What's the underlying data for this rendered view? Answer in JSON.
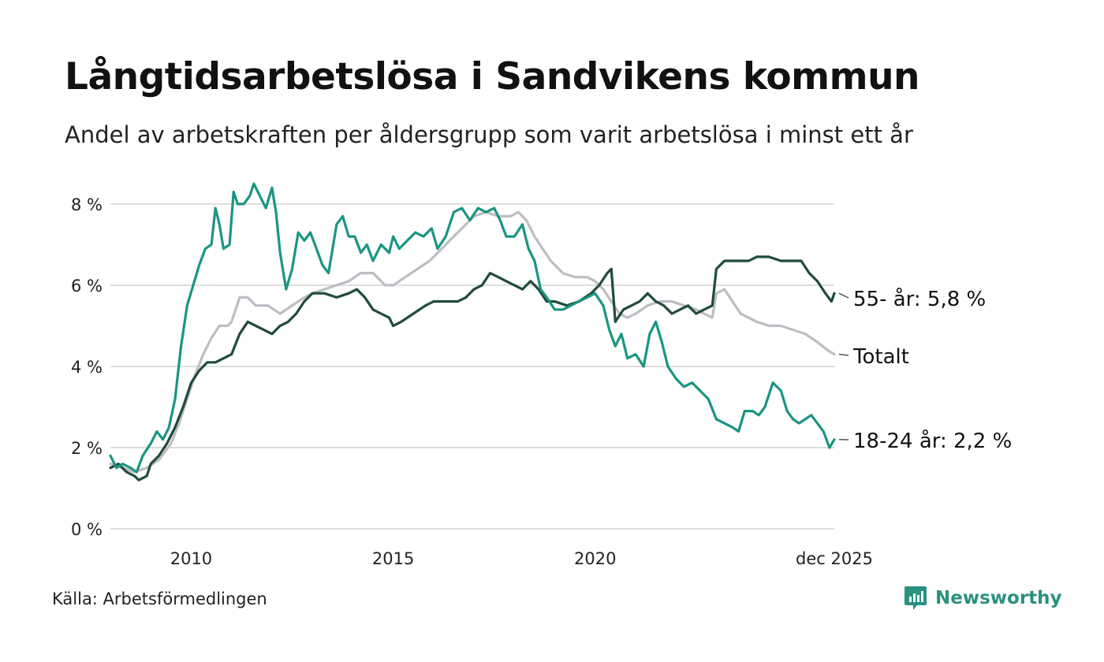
{
  "title": "Långtidsarbetslösa i Sandvikens kommun",
  "subtitle": "Andel av arbetskraften per åldersgrupp som varit arbetslösa i minst ett år",
  "source": "Källa: Arbetsförmedlingen",
  "brand": "Newsworthy",
  "colors": {
    "grid": "#dddddd",
    "youth": "#1a9582",
    "senior": "#1f4a3f",
    "total": "#bfbcc4",
    "text": "#222222",
    "brand": "#2a9080"
  },
  "chart_data": {
    "type": "line",
    "ylim": [
      0,
      8.6
    ],
    "xlim": [
      2008.0,
      2025.92
    ],
    "yticks": [
      0,
      2,
      4,
      6,
      8
    ],
    "ytick_labels": [
      "0 %",
      "2 %",
      "4 %",
      "6 %",
      "8 %"
    ],
    "xticks": [
      2010,
      2015,
      2020,
      2025.92
    ],
    "xtick_labels": [
      "2010",
      "2015",
      "2020",
      "dec 2025"
    ],
    "grid": true,
    "series": [
      {
        "name": "Totalt",
        "label": "Totalt",
        "color": "#bfbcc4",
        "points": [
          [
            2008.0,
            1.6
          ],
          [
            2008.3,
            1.5
          ],
          [
            2008.6,
            1.4
          ],
          [
            2008.9,
            1.5
          ],
          [
            2009.2,
            1.7
          ],
          [
            2009.5,
            2.1
          ],
          [
            2009.7,
            2.6
          ],
          [
            2009.9,
            3.2
          ],
          [
            2010.1,
            3.8
          ],
          [
            2010.3,
            4.3
          ],
          [
            2010.5,
            4.7
          ],
          [
            2010.7,
            5.0
          ],
          [
            2010.9,
            5.0
          ],
          [
            2011.0,
            5.1
          ],
          [
            2011.2,
            5.7
          ],
          [
            2011.4,
            5.7
          ],
          [
            2011.6,
            5.5
          ],
          [
            2011.9,
            5.5
          ],
          [
            2012.2,
            5.3
          ],
          [
            2012.5,
            5.5
          ],
          [
            2012.8,
            5.7
          ],
          [
            2013.0,
            5.8
          ],
          [
            2013.3,
            5.9
          ],
          [
            2013.6,
            6.0
          ],
          [
            2013.9,
            6.1
          ],
          [
            2014.2,
            6.3
          ],
          [
            2014.5,
            6.3
          ],
          [
            2014.8,
            6.0
          ],
          [
            2015.0,
            6.0
          ],
          [
            2015.3,
            6.2
          ],
          [
            2015.6,
            6.4
          ],
          [
            2015.9,
            6.6
          ],
          [
            2016.2,
            6.9
          ],
          [
            2016.5,
            7.2
          ],
          [
            2016.8,
            7.5
          ],
          [
            2017.0,
            7.7
          ],
          [
            2017.3,
            7.8
          ],
          [
            2017.6,
            7.7
          ],
          [
            2017.9,
            7.7
          ],
          [
            2018.1,
            7.8
          ],
          [
            2018.3,
            7.6
          ],
          [
            2018.5,
            7.2
          ],
          [
            2018.7,
            6.9
          ],
          [
            2018.9,
            6.6
          ],
          [
            2019.2,
            6.3
          ],
          [
            2019.5,
            6.2
          ],
          [
            2019.8,
            6.2
          ],
          [
            2020.0,
            6.1
          ],
          [
            2020.2,
            5.9
          ],
          [
            2020.4,
            5.6
          ],
          [
            2020.6,
            5.3
          ],
          [
            2020.8,
            5.2
          ],
          [
            2021.0,
            5.3
          ],
          [
            2021.3,
            5.5
          ],
          [
            2021.6,
            5.6
          ],
          [
            2021.9,
            5.6
          ],
          [
            2022.2,
            5.5
          ],
          [
            2022.5,
            5.4
          ],
          [
            2022.7,
            5.3
          ],
          [
            2022.9,
            5.2
          ],
          [
            2023.0,
            5.8
          ],
          [
            2023.2,
            5.9
          ],
          [
            2023.4,
            5.6
          ],
          [
            2023.6,
            5.3
          ],
          [
            2023.8,
            5.2
          ],
          [
            2024.0,
            5.1
          ],
          [
            2024.3,
            5.0
          ],
          [
            2024.6,
            5.0
          ],
          [
            2024.9,
            4.9
          ],
          [
            2025.2,
            4.8
          ],
          [
            2025.5,
            4.6
          ],
          [
            2025.75,
            4.4
          ],
          [
            2025.92,
            4.3
          ]
        ]
      },
      {
        "name": "55- år",
        "label": "55- år: 5,8 %",
        "color": "#1f4a3f",
        "points": [
          [
            2008.0,
            1.5
          ],
          [
            2008.2,
            1.6
          ],
          [
            2008.4,
            1.4
          ],
          [
            2008.6,
            1.3
          ],
          [
            2008.7,
            1.2
          ],
          [
            2008.9,
            1.3
          ],
          [
            2009.0,
            1.6
          ],
          [
            2009.2,
            1.8
          ],
          [
            2009.4,
            2.1
          ],
          [
            2009.6,
            2.5
          ],
          [
            2009.8,
            3.0
          ],
          [
            2010.0,
            3.6
          ],
          [
            2010.2,
            3.9
          ],
          [
            2010.4,
            4.1
          ],
          [
            2010.6,
            4.1
          ],
          [
            2010.8,
            4.2
          ],
          [
            2011.0,
            4.3
          ],
          [
            2011.2,
            4.8
          ],
          [
            2011.4,
            5.1
          ],
          [
            2011.6,
            5.0
          ],
          [
            2011.8,
            4.9
          ],
          [
            2012.0,
            4.8
          ],
          [
            2012.2,
            5.0
          ],
          [
            2012.4,
            5.1
          ],
          [
            2012.6,
            5.3
          ],
          [
            2012.8,
            5.6
          ],
          [
            2013.0,
            5.8
          ],
          [
            2013.3,
            5.8
          ],
          [
            2013.6,
            5.7
          ],
          [
            2013.9,
            5.8
          ],
          [
            2014.1,
            5.9
          ],
          [
            2014.3,
            5.7
          ],
          [
            2014.5,
            5.4
          ],
          [
            2014.7,
            5.3
          ],
          [
            2014.9,
            5.2
          ],
          [
            2015.0,
            5.0
          ],
          [
            2015.2,
            5.1
          ],
          [
            2015.5,
            5.3
          ],
          [
            2015.8,
            5.5
          ],
          [
            2016.0,
            5.6
          ],
          [
            2016.3,
            5.6
          ],
          [
            2016.6,
            5.6
          ],
          [
            2016.8,
            5.7
          ],
          [
            2017.0,
            5.9
          ],
          [
            2017.2,
            6.0
          ],
          [
            2017.4,
            6.3
          ],
          [
            2017.6,
            6.2
          ],
          [
            2017.8,
            6.1
          ],
          [
            2018.0,
            6.0
          ],
          [
            2018.2,
            5.9
          ],
          [
            2018.4,
            6.1
          ],
          [
            2018.6,
            5.9
          ],
          [
            2018.8,
            5.6
          ],
          [
            2019.0,
            5.6
          ],
          [
            2019.3,
            5.5
          ],
          [
            2019.6,
            5.6
          ],
          [
            2019.9,
            5.8
          ],
          [
            2020.1,
            6.0
          ],
          [
            2020.3,
            6.3
          ],
          [
            2020.4,
            6.4
          ],
          [
            2020.5,
            5.1
          ],
          [
            2020.7,
            5.4
          ],
          [
            2020.9,
            5.5
          ],
          [
            2021.1,
            5.6
          ],
          [
            2021.3,
            5.8
          ],
          [
            2021.5,
            5.6
          ],
          [
            2021.7,
            5.5
          ],
          [
            2021.9,
            5.3
          ],
          [
            2022.1,
            5.4
          ],
          [
            2022.3,
            5.5
          ],
          [
            2022.5,
            5.3
          ],
          [
            2022.7,
            5.4
          ],
          [
            2022.9,
            5.5
          ],
          [
            2023.0,
            6.4
          ],
          [
            2023.2,
            6.6
          ],
          [
            2023.5,
            6.6
          ],
          [
            2023.8,
            6.6
          ],
          [
            2024.0,
            6.7
          ],
          [
            2024.3,
            6.7
          ],
          [
            2024.6,
            6.6
          ],
          [
            2024.9,
            6.6
          ],
          [
            2025.1,
            6.6
          ],
          [
            2025.3,
            6.3
          ],
          [
            2025.5,
            6.1
          ],
          [
            2025.7,
            5.8
          ],
          [
            2025.85,
            5.6
          ],
          [
            2025.92,
            5.8
          ]
        ]
      },
      {
        "name": "18-24 år",
        "label": "18-24 år: 2,2 %",
        "color": "#1a9582",
        "points": [
          [
            2008.0,
            1.8
          ],
          [
            2008.15,
            1.5
          ],
          [
            2008.3,
            1.6
          ],
          [
            2008.5,
            1.5
          ],
          [
            2008.65,
            1.4
          ],
          [
            2008.8,
            1.8
          ],
          [
            2009.0,
            2.1
          ],
          [
            2009.15,
            2.4
          ],
          [
            2009.3,
            2.2
          ],
          [
            2009.45,
            2.5
          ],
          [
            2009.6,
            3.2
          ],
          [
            2009.75,
            4.5
          ],
          [
            2009.9,
            5.5
          ],
          [
            2010.05,
            6.0
          ],
          [
            2010.2,
            6.5
          ],
          [
            2010.35,
            6.9
          ],
          [
            2010.5,
            7.0
          ],
          [
            2010.6,
            7.9
          ],
          [
            2010.7,
            7.5
          ],
          [
            2010.8,
            6.9
          ],
          [
            2010.95,
            7.0
          ],
          [
            2011.05,
            8.3
          ],
          [
            2011.15,
            8.0
          ],
          [
            2011.3,
            8.0
          ],
          [
            2011.45,
            8.2
          ],
          [
            2011.55,
            8.5
          ],
          [
            2011.7,
            8.2
          ],
          [
            2011.85,
            7.9
          ],
          [
            2012.0,
            8.4
          ],
          [
            2012.1,
            7.8
          ],
          [
            2012.2,
            6.8
          ],
          [
            2012.35,
            5.9
          ],
          [
            2012.5,
            6.4
          ],
          [
            2012.65,
            7.3
          ],
          [
            2012.8,
            7.1
          ],
          [
            2012.95,
            7.3
          ],
          [
            2013.1,
            6.9
          ],
          [
            2013.25,
            6.5
          ],
          [
            2013.4,
            6.3
          ],
          [
            2013.6,
            7.5
          ],
          [
            2013.75,
            7.7
          ],
          [
            2013.9,
            7.2
          ],
          [
            2014.05,
            7.2
          ],
          [
            2014.2,
            6.8
          ],
          [
            2014.35,
            7.0
          ],
          [
            2014.5,
            6.6
          ],
          [
            2014.7,
            7.0
          ],
          [
            2014.9,
            6.8
          ],
          [
            2015.0,
            7.2
          ],
          [
            2015.15,
            6.9
          ],
          [
            2015.35,
            7.1
          ],
          [
            2015.55,
            7.3
          ],
          [
            2015.75,
            7.2
          ],
          [
            2015.95,
            7.4
          ],
          [
            2016.1,
            6.9
          ],
          [
            2016.3,
            7.2
          ],
          [
            2016.5,
            7.8
          ],
          [
            2016.7,
            7.9
          ],
          [
            2016.9,
            7.6
          ],
          [
            2017.1,
            7.9
          ],
          [
            2017.3,
            7.8
          ],
          [
            2017.5,
            7.9
          ],
          [
            2017.65,
            7.6
          ],
          [
            2017.8,
            7.2
          ],
          [
            2018.0,
            7.2
          ],
          [
            2018.2,
            7.5
          ],
          [
            2018.35,
            6.9
          ],
          [
            2018.5,
            6.6
          ],
          [
            2018.65,
            5.9
          ],
          [
            2018.8,
            5.7
          ],
          [
            2019.0,
            5.4
          ],
          [
            2019.2,
            5.4
          ],
          [
            2019.4,
            5.5
          ],
          [
            2019.6,
            5.6
          ],
          [
            2019.8,
            5.7
          ],
          [
            2020.0,
            5.8
          ],
          [
            2020.2,
            5.5
          ],
          [
            2020.35,
            4.9
          ],
          [
            2020.5,
            4.5
          ],
          [
            2020.65,
            4.8
          ],
          [
            2020.8,
            4.2
          ],
          [
            2021.0,
            4.3
          ],
          [
            2021.2,
            4.0
          ],
          [
            2021.35,
            4.8
          ],
          [
            2021.5,
            5.1
          ],
          [
            2021.65,
            4.6
          ],
          [
            2021.8,
            4.0
          ],
          [
            2022.0,
            3.7
          ],
          [
            2022.2,
            3.5
          ],
          [
            2022.4,
            3.6
          ],
          [
            2022.6,
            3.4
          ],
          [
            2022.8,
            3.2
          ],
          [
            2023.0,
            2.7
          ],
          [
            2023.2,
            2.6
          ],
          [
            2023.4,
            2.5
          ],
          [
            2023.55,
            2.4
          ],
          [
            2023.7,
            2.9
          ],
          [
            2023.9,
            2.9
          ],
          [
            2024.05,
            2.8
          ],
          [
            2024.2,
            3.0
          ],
          [
            2024.4,
            3.6
          ],
          [
            2024.6,
            3.4
          ],
          [
            2024.75,
            2.9
          ],
          [
            2024.9,
            2.7
          ],
          [
            2025.05,
            2.6
          ],
          [
            2025.2,
            2.7
          ],
          [
            2025.35,
            2.8
          ],
          [
            2025.5,
            2.6
          ],
          [
            2025.65,
            2.4
          ],
          [
            2025.8,
            2.0
          ],
          [
            2025.92,
            2.2
          ]
        ]
      }
    ]
  }
}
